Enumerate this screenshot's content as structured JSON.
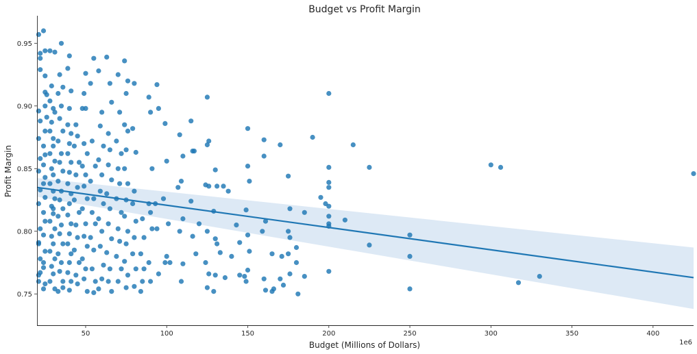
{
  "chart_data": {
    "type": "scatter",
    "title": "Budget vs Profit Margin",
    "xlabel": "Budget (Millions of Dollars)",
    "ylabel": "Profit Margin",
    "x_offset_label": "1e6",
    "xlim": [
      20,
      425
    ],
    "ylim": [
      0.725,
      0.972
    ],
    "xticks": [
      50,
      100,
      150,
      200,
      250,
      300,
      350,
      400
    ],
    "yticks": [
      0.75,
      0.8,
      0.85,
      0.9,
      0.95
    ],
    "ytick_labels": [
      "0.75",
      "0.80",
      "0.85",
      "0.90",
      "0.95"
    ],
    "grid": false,
    "colors": {
      "points": "#1f77b4",
      "line": "#1f77b4",
      "band": "#c6dbef"
    },
    "regression": {
      "x": [
        20,
        425
      ],
      "y": [
        0.835,
        0.763
      ],
      "ci_upper": [
        0.8425,
        0.787
      ],
      "ci_lower": [
        0.8275,
        0.738
      ]
    },
    "points": [
      [
        21,
        0.957
      ],
      [
        24,
        0.96
      ],
      [
        22,
        0.942
      ],
      [
        25,
        0.944
      ],
      [
        22,
        0.938
      ],
      [
        22,
        0.929
      ],
      [
        25,
        0.924
      ],
      [
        25,
        0.911
      ],
      [
        26,
        0.909
      ],
      [
        25,
        0.9
      ],
      [
        21,
        0.896
      ],
      [
        26,
        0.891
      ],
      [
        22,
        0.888
      ],
      [
        25,
        0.88
      ],
      [
        21,
        0.874
      ],
      [
        24,
        0.868
      ],
      [
        25,
        0.861
      ],
      [
        22,
        0.858
      ],
      [
        24,
        0.853
      ],
      [
        21,
        0.848
      ],
      [
        25,
        0.843
      ],
      [
        24,
        0.838
      ],
      [
        22,
        0.833
      ],
      [
        25,
        0.827
      ],
      [
        21,
        0.822
      ],
      [
        24,
        0.815
      ],
      [
        25,
        0.808
      ],
      [
        22,
        0.802
      ],
      [
        24,
        0.797
      ],
      [
        21,
        0.791
      ],
      [
        25,
        0.784
      ],
      [
        22,
        0.778
      ],
      [
        24,
        0.771
      ],
      [
        21,
        0.765
      ],
      [
        25,
        0.758
      ],
      [
        24,
        0.754
      ],
      [
        21,
        0.76
      ],
      [
        22,
        0.767
      ],
      [
        24,
        0.775
      ],
      [
        21,
        0.79
      ],
      [
        28,
        0.944
      ],
      [
        31,
        0.943
      ],
      [
        29,
        0.916
      ],
      [
        28,
        0.904
      ],
      [
        30,
        0.898
      ],
      [
        31,
        0.895
      ],
      [
        29,
        0.887
      ],
      [
        28,
        0.88
      ],
      [
        30,
        0.874
      ],
      [
        30,
        0.868
      ],
      [
        28,
        0.862
      ],
      [
        31,
        0.856
      ],
      [
        29,
        0.85
      ],
      [
        30,
        0.845
      ],
      [
        28,
        0.838
      ],
      [
        30,
        0.832
      ],
      [
        31,
        0.826
      ],
      [
        29,
        0.82
      ],
      [
        30,
        0.814
      ],
      [
        28,
        0.808
      ],
      [
        31,
        0.802
      ],
      [
        29,
        0.796
      ],
      [
        30,
        0.79
      ],
      [
        28,
        0.784
      ],
      [
        31,
        0.778
      ],
      [
        29,
        0.772
      ],
      [
        30,
        0.766
      ],
      [
        28,
        0.76
      ],
      [
        31,
        0.754
      ],
      [
        30,
        0.818
      ],
      [
        35,
        0.95
      ],
      [
        34,
        0.925
      ],
      [
        36,
        0.915
      ],
      [
        33,
        0.91
      ],
      [
        35,
        0.9
      ],
      [
        34,
        0.89
      ],
      [
        36,
        0.88
      ],
      [
        33,
        0.872
      ],
      [
        35,
        0.862
      ],
      [
        34,
        0.855
      ],
      [
        36,
        0.848
      ],
      [
        33,
        0.84
      ],
      [
        35,
        0.832
      ],
      [
        34,
        0.825
      ],
      [
        36,
        0.818
      ],
      [
        33,
        0.812
      ],
      [
        35,
        0.805
      ],
      [
        34,
        0.798
      ],
      [
        36,
        0.79
      ],
      [
        33,
        0.782
      ],
      [
        35,
        0.775
      ],
      [
        34,
        0.768
      ],
      [
        36,
        0.76
      ],
      [
        33,
        0.752
      ],
      [
        36,
        0.755
      ],
      [
        40,
        0.94
      ],
      [
        39,
        0.93
      ],
      [
        41,
        0.912
      ],
      [
        40,
        0.898
      ],
      [
        39,
        0.885
      ],
      [
        41,
        0.878
      ],
      [
        40,
        0.87
      ],
      [
        39,
        0.862
      ],
      [
        41,
        0.855
      ],
      [
        40,
        0.847
      ],
      [
        39,
        0.838
      ],
      [
        41,
        0.83
      ],
      [
        40,
        0.822
      ],
      [
        39,
        0.813
      ],
      [
        41,
        0.806
      ],
      [
        40,
        0.798
      ],
      [
        39,
        0.79
      ],
      [
        41,
        0.782
      ],
      [
        40,
        0.775
      ],
      [
        39,
        0.767
      ],
      [
        41,
        0.76
      ],
      [
        40,
        0.753
      ],
      [
        44,
        0.885
      ],
      [
        45,
        0.876
      ],
      [
        43,
        0.868
      ],
      [
        46,
        0.855
      ],
      [
        44,
        0.845
      ],
      [
        45,
        0.835
      ],
      [
        43,
        0.825
      ],
      [
        46,
        0.815
      ],
      [
        44,
        0.805
      ],
      [
        45,
        0.795
      ],
      [
        43,
        0.785
      ],
      [
        46,
        0.775
      ],
      [
        44,
        0.765
      ],
      [
        45,
        0.758
      ],
      [
        48,
        0.898
      ],
      [
        50,
        0.898
      ],
      [
        49,
        0.87
      ],
      [
        51,
        0.862
      ],
      [
        48,
        0.852
      ],
      [
        50,
        0.845
      ],
      [
        49,
        0.836
      ],
      [
        51,
        0.826
      ],
      [
        48,
        0.818
      ],
      [
        50,
        0.806
      ],
      [
        49,
        0.796
      ],
      [
        51,
        0.788
      ],
      [
        48,
        0.778
      ],
      [
        50,
        0.77
      ],
      [
        49,
        0.762
      ],
      [
        51,
        0.752
      ],
      [
        50,
        0.926
      ],
      [
        49,
        0.91
      ],
      [
        53,
        0.918
      ],
      [
        55,
        0.938
      ],
      [
        54,
        0.872
      ],
      [
        56,
        0.852
      ],
      [
        53,
        0.84
      ],
      [
        55,
        0.826
      ],
      [
        54,
        0.815
      ],
      [
        56,
        0.806
      ],
      [
        53,
        0.795
      ],
      [
        55,
        0.785
      ],
      [
        54,
        0.77
      ],
      [
        56,
        0.76
      ],
      [
        55,
        0.751
      ],
      [
        58,
        0.928
      ],
      [
        60,
        0.895
      ],
      [
        59,
        0.884
      ],
      [
        61,
        0.868
      ],
      [
        58,
        0.857
      ],
      [
        60,
        0.845
      ],
      [
        59,
        0.832
      ],
      [
        61,
        0.822
      ],
      [
        58,
        0.81
      ],
      [
        60,
        0.8
      ],
      [
        59,
        0.788
      ],
      [
        61,
        0.773
      ],
      [
        60,
        0.762
      ],
      [
        58,
        0.754
      ],
      [
        63,
        0.939
      ],
      [
        65,
        0.918
      ],
      [
        66,
        0.903
      ],
      [
        64,
        0.878
      ],
      [
        65,
        0.865
      ],
      [
        64,
        0.853
      ],
      [
        66,
        0.841
      ],
      [
        63,
        0.83
      ],
      [
        65,
        0.818
      ],
      [
        64,
        0.806
      ],
      [
        66,
        0.794
      ],
      [
        63,
        0.783
      ],
      [
        65,
        0.77
      ],
      [
        64,
        0.76
      ],
      [
        66,
        0.752
      ],
      [
        70,
        0.925
      ],
      [
        71,
        0.895
      ],
      [
        69,
        0.872
      ],
      [
        72,
        0.862
      ],
      [
        70,
        0.85
      ],
      [
        71,
        0.838
      ],
      [
        69,
        0.826
      ],
      [
        72,
        0.815
      ],
      [
        70,
        0.802
      ],
      [
        71,
        0.792
      ],
      [
        69,
        0.78
      ],
      [
        72,
        0.77
      ],
      [
        70,
        0.76
      ],
      [
        74,
        0.936
      ],
      [
        76,
        0.92
      ],
      [
        75,
        0.91
      ],
      [
        74,
        0.885
      ],
      [
        76,
        0.88
      ],
      [
        75,
        0.865
      ],
      [
        74,
        0.85
      ],
      [
        76,
        0.838
      ],
      [
        75,
        0.825
      ],
      [
        74,
        0.812
      ],
      [
        76,
        0.8
      ],
      [
        75,
        0.79
      ],
      [
        74,
        0.776
      ],
      [
        76,
        0.765
      ],
      [
        75,
        0.755
      ],
      [
        80,
        0.918
      ],
      [
        79,
        0.882
      ],
      [
        81,
        0.863
      ],
      [
        80,
        0.832
      ],
      [
        79,
        0.822
      ],
      [
        81,
        0.808
      ],
      [
        80,
        0.795
      ],
      [
        79,
        0.782
      ],
      [
        81,
        0.77
      ],
      [
        80,
        0.756
      ],
      [
        85,
        0.81
      ],
      [
        86,
        0.795
      ],
      [
        84,
        0.782
      ],
      [
        86,
        0.77
      ],
      [
        85,
        0.76
      ],
      [
        84,
        0.752
      ],
      [
        89,
        0.907
      ],
      [
        90,
        0.895
      ],
      [
        91,
        0.85
      ],
      [
        89,
        0.822
      ],
      [
        90,
        0.815
      ],
      [
        91,
        0.802
      ],
      [
        89,
        0.775
      ],
      [
        90,
        0.76
      ],
      [
        94,
        0.917
      ],
      [
        95,
        0.898
      ],
      [
        93,
        0.822
      ],
      [
        94,
        0.802
      ],
      [
        95,
        0.766
      ],
      [
        99,
        0.886
      ],
      [
        100,
        0.856
      ],
      [
        98,
        0.826
      ],
      [
        101,
        0.806
      ],
      [
        99,
        0.775
      ],
      [
        100,
        0.78
      ],
      [
        102,
        0.775
      ],
      [
        108,
        0.877
      ],
      [
        110,
        0.86
      ],
      [
        109,
        0.84
      ],
      [
        107,
        0.835
      ],
      [
        110,
        0.81
      ],
      [
        108,
        0.8
      ],
      [
        110,
        0.774
      ],
      [
        109,
        0.76
      ],
      [
        115,
        0.888
      ],
      [
        116,
        0.864
      ],
      [
        117,
        0.864
      ],
      [
        115,
        0.824
      ],
      [
        116,
        0.796
      ],
      [
        120,
        0.806
      ],
      [
        118,
        0.782
      ],
      [
        125,
        0.907
      ],
      [
        126,
        0.872
      ],
      [
        125,
        0.869
      ],
      [
        124,
        0.837
      ],
      [
        126,
        0.836
      ],
      [
        125,
        0.8
      ],
      [
        124,
        0.775
      ],
      [
        126,
        0.766
      ],
      [
        125,
        0.755
      ],
      [
        130,
        0.849
      ],
      [
        131,
        0.836
      ],
      [
        129,
        0.816
      ],
      [
        130,
        0.794
      ],
      [
        131,
        0.79
      ],
      [
        130,
        0.765
      ],
      [
        129,
        0.752
      ],
      [
        133,
        0.783
      ],
      [
        135,
        0.836
      ],
      [
        136,
        0.763
      ],
      [
        138,
        0.832
      ],
      [
        140,
        0.78
      ],
      [
        143,
        0.805
      ],
      [
        145,
        0.791
      ],
      [
        145,
        0.765
      ],
      [
        150,
        0.882
      ],
      [
        150,
        0.852
      ],
      [
        151,
        0.84
      ],
      [
        149,
        0.817
      ],
      [
        150,
        0.797
      ],
      [
        151,
        0.784
      ],
      [
        150,
        0.769
      ],
      [
        149,
        0.76
      ],
      [
        148,
        0.764
      ],
      [
        160,
        0.873
      ],
      [
        160,
        0.86
      ],
      [
        161,
        0.808
      ],
      [
        159,
        0.8
      ],
      [
        160,
        0.762
      ],
      [
        161,
        0.753
      ],
      [
        165,
        0.782
      ],
      [
        166,
        0.754
      ],
      [
        165,
        0.752
      ],
      [
        170,
        0.869
      ],
      [
        171,
        0.78
      ],
      [
        170,
        0.762
      ],
      [
        172,
        0.757
      ],
      [
        175,
        0.844
      ],
      [
        176,
        0.818
      ],
      [
        175,
        0.8
      ],
      [
        176,
        0.795
      ],
      [
        175,
        0.782
      ],
      [
        176,
        0.766
      ],
      [
        180,
        0.787
      ],
      [
        180,
        0.775
      ],
      [
        181,
        0.75
      ],
      [
        185,
        0.815
      ],
      [
        185,
        0.764
      ],
      [
        190,
        0.875
      ],
      [
        195,
        0.827
      ],
      [
        198,
        0.822
      ],
      [
        200,
        0.91
      ],
      [
        200,
        0.851
      ],
      [
        200,
        0.839
      ],
      [
        200,
        0.835
      ],
      [
        200,
        0.82
      ],
      [
        200,
        0.812
      ],
      [
        200,
        0.806
      ],
      [
        200,
        0.804
      ],
      [
        200,
        0.768
      ],
      [
        210,
        0.809
      ],
      [
        215,
        0.869
      ],
      [
        225,
        0.851
      ],
      [
        225,
        0.789
      ],
      [
        250,
        0.797
      ],
      [
        250,
        0.78
      ],
      [
        250,
        0.754
      ],
      [
        300,
        0.853
      ],
      [
        306,
        0.851
      ],
      [
        317,
        0.759
      ],
      [
        330,
        0.764
      ],
      [
        425,
        0.846
      ]
    ]
  }
}
